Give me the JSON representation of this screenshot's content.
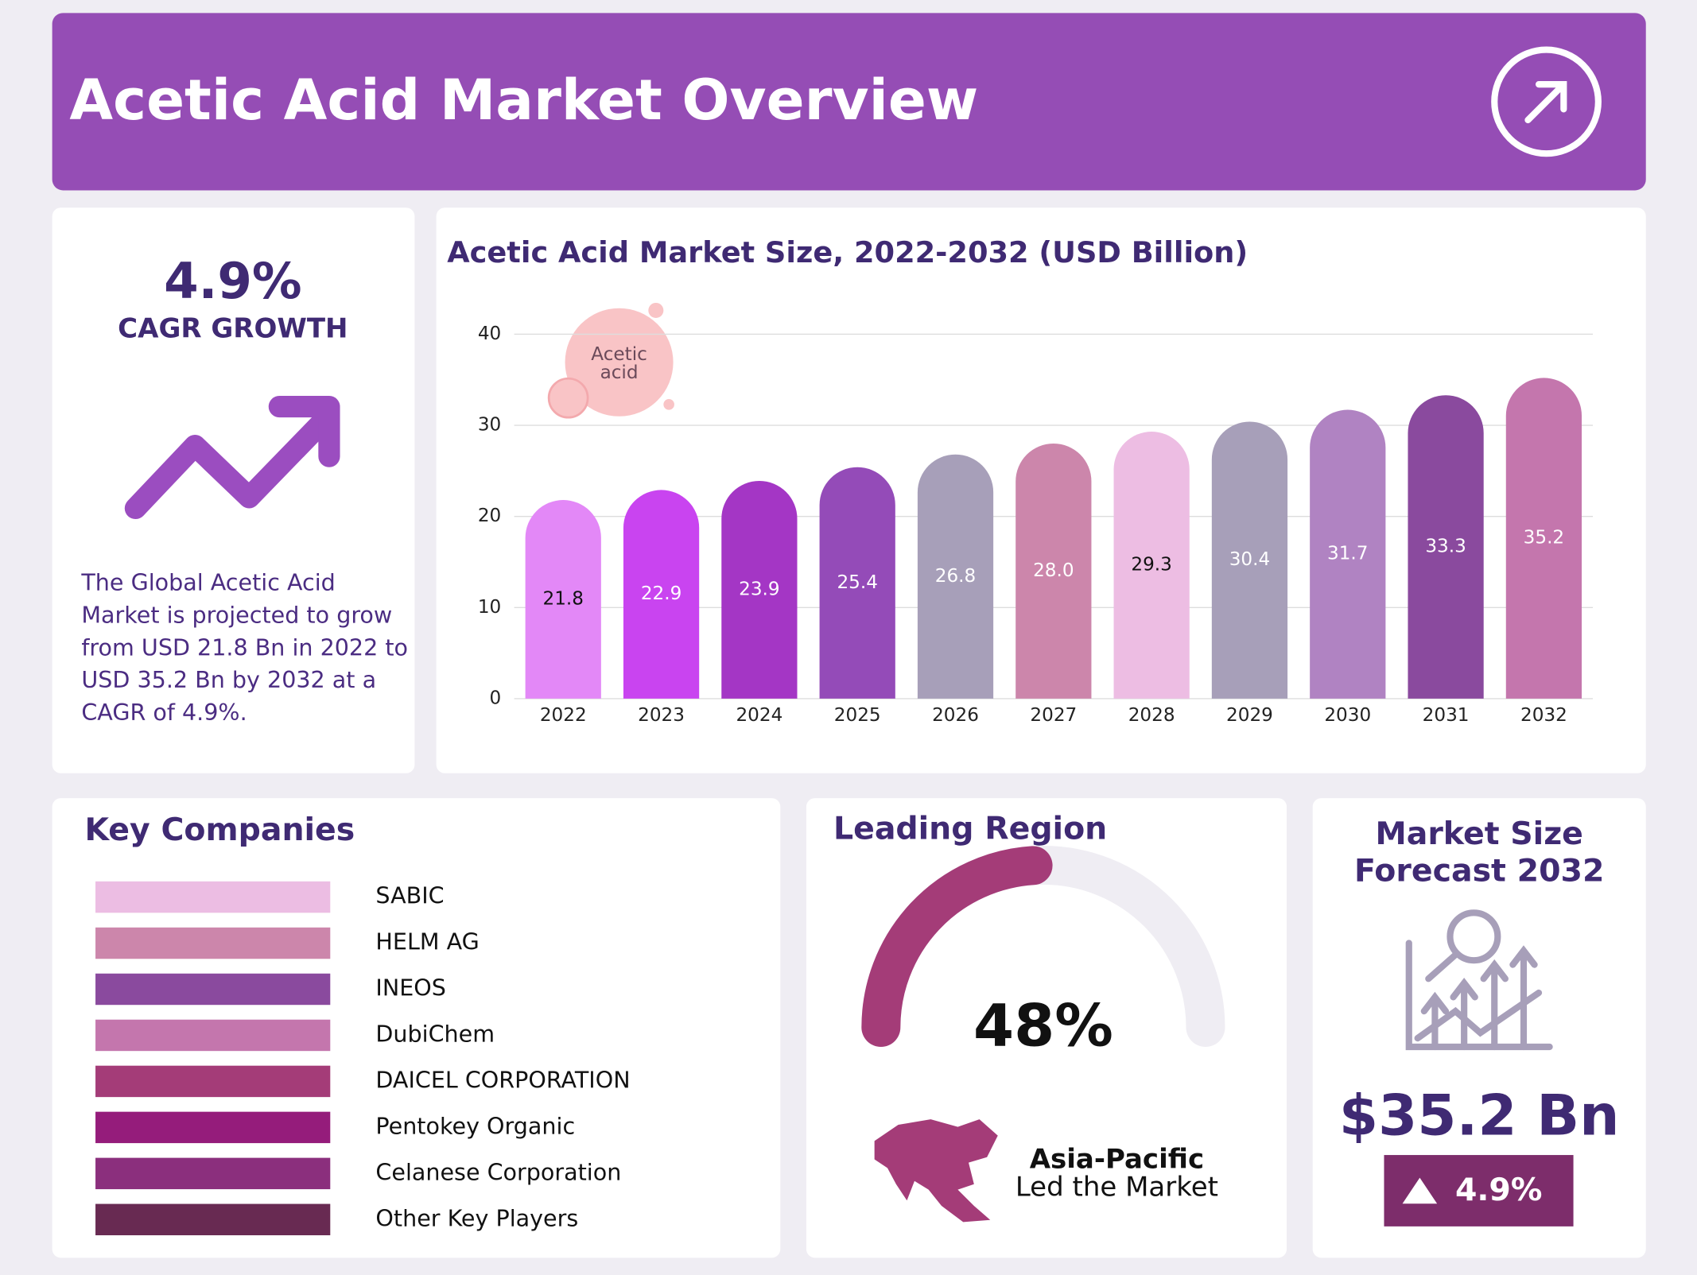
{
  "header": {
    "title": "Acetic Acid Market Overview"
  },
  "cagr": {
    "value": "4.9%",
    "label": "CAGR GROWTH",
    "description": [
      "The Global Acetic Acid",
      "Market is projected to grow",
      "from USD 21.8 Bn in 2022 to",
      "USD 35.2 Bn by 2032 at a",
      "CAGR of 4.9%."
    ]
  },
  "chart_data": {
    "type": "bar",
    "title": "Acetic Acid Market Size, 2022-2032 (USD Billion)",
    "categories": [
      "2022",
      "2023",
      "2024",
      "2025",
      "2026",
      "2027",
      "2028",
      "2029",
      "2030",
      "2031",
      "2032"
    ],
    "values": [
      21.8,
      22.9,
      23.9,
      25.4,
      26.8,
      28.0,
      29.3,
      30.4,
      31.7,
      33.3,
      35.2
    ],
    "value_labels": [
      "21.8",
      "22.9",
      "23.9",
      "25.4",
      "26.8",
      "28.0",
      "29.3",
      "30.4",
      "31.7",
      "33.3",
      "35.2"
    ],
    "colors": [
      "#e388f7",
      "#c944f0",
      "#a436c5",
      "#944bb8",
      "#a79fb9",
      "#cc86ab",
      "#edbde3",
      "#a79fb9",
      "#b083c2",
      "#8a4a9e",
      "#c476ad"
    ],
    "ylim": [
      0,
      40
    ],
    "yticks": [
      0,
      10,
      20,
      30,
      40
    ],
    "grid": true,
    "annotation": [
      "Acetic",
      "acid"
    ]
  },
  "companies": {
    "title": "Key Companies",
    "items": [
      {
        "name": "SABIC",
        "color": "#ecbde3"
      },
      {
        "name": "HELM AG",
        "color": "#cc86ab"
      },
      {
        "name": "INEOS",
        "color": "#8a4a9e"
      },
      {
        "name": "DubiChem",
        "color": "#c476ad"
      },
      {
        "name": "DAICEL CORPORATION",
        "color": "#a43c78"
      },
      {
        "name": "Pentokey Organic",
        "color": "#951c7b"
      },
      {
        "name": "Celanese Corporation",
        "color": "#8b2f7d"
      },
      {
        "name": "Other Key Players",
        "color": "#682a52"
      }
    ]
  },
  "region": {
    "title": "Leading Region",
    "share": 48,
    "share_label": "48%",
    "name": "Asia-Pacific",
    "subtitle": "Led the Market",
    "color": "#a43c78"
  },
  "forecast": {
    "title": [
      "Market Size",
      "Forecast 2032"
    ],
    "value": "$35.2 Bn",
    "growth": "4.9%"
  }
}
